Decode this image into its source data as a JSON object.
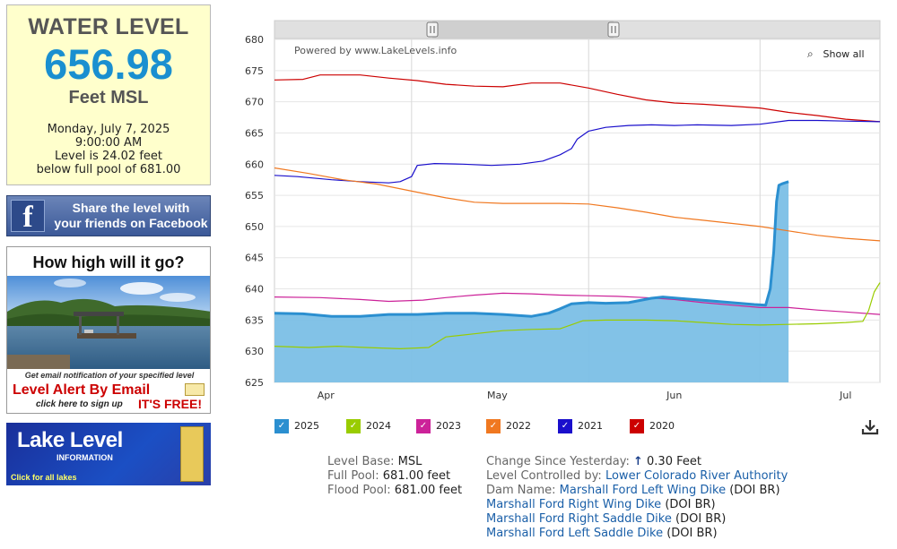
{
  "level_box": {
    "title": "WATER LEVEL",
    "value": "656.98",
    "unit": "Feet MSL",
    "date": "Monday, July 7, 2025",
    "time": "9:00:00 AM",
    "level_line": "Level is 24.02 feet",
    "pool_line": "below full pool of 681.00"
  },
  "facebook": {
    "text_line1": "Share the level with",
    "text_line2": "your friends on Facebook",
    "logo": "f"
  },
  "alert": {
    "heading": "How high will it go?",
    "note": "Get email notification of your specified level",
    "main": "Level Alert By Email",
    "signup": "click here to sign up",
    "free": "IT'S FREE!"
  },
  "lake_banner": {
    "title": "Lake Level",
    "sub": "INFORMATION",
    "link": "Click for all lakes"
  },
  "chart": {
    "powered": "Powered by www.LakeLevels.info",
    "show_all": "Show all",
    "zoom_icon": "magnifier-minus-icon"
  },
  "chart_data": {
    "type": "line",
    "ylim": [
      625,
      680
    ],
    "yticks": [
      "680",
      "675",
      "670",
      "665",
      "660",
      "655",
      "650",
      "645",
      "640",
      "635",
      "630",
      "625"
    ],
    "xlim": [
      0,
      106
    ],
    "xticks": [
      {
        "label": "Apr",
        "day": 9
      },
      {
        "label": "May",
        "day": 39
      },
      {
        "label": "Jun",
        "day": 70
      },
      {
        "label": "Jul",
        "day": 100
      }
    ],
    "gridline_days": [
      24,
      55,
      85
    ],
    "series": [
      {
        "name": "2020",
        "color": "#cc0000",
        "points": [
          [
            0,
            673.5
          ],
          [
            5,
            673.6
          ],
          [
            8,
            674.3
          ],
          [
            15,
            674.3
          ],
          [
            20,
            673.8
          ],
          [
            25,
            673.4
          ],
          [
            30,
            672.8
          ],
          [
            35,
            672.5
          ],
          [
            40,
            672.4
          ],
          [
            45,
            673.0
          ],
          [
            50,
            673.0
          ],
          [
            55,
            672.2
          ],
          [
            60,
            671.2
          ],
          [
            65,
            670.3
          ],
          [
            70,
            669.8
          ],
          [
            75,
            669.6
          ],
          [
            80,
            669.3
          ],
          [
            85,
            669.0
          ],
          [
            90,
            668.3
          ],
          [
            95,
            667.8
          ],
          [
            100,
            667.2
          ],
          [
            106,
            666.8
          ]
        ]
      },
      {
        "name": "2021",
        "color": "#1a0fcc",
        "points": [
          [
            0,
            658.2
          ],
          [
            4,
            658.0
          ],
          [
            10,
            657.5
          ],
          [
            15,
            657.2
          ],
          [
            20,
            657.0
          ],
          [
            22,
            657.2
          ],
          [
            24,
            658.0
          ],
          [
            25,
            659.8
          ],
          [
            28,
            660.1
          ],
          [
            33,
            660.0
          ],
          [
            38,
            659.8
          ],
          [
            43,
            660.0
          ],
          [
            47,
            660.5
          ],
          [
            50,
            661.5
          ],
          [
            52,
            662.5
          ],
          [
            53,
            664.0
          ],
          [
            55,
            665.3
          ],
          [
            58,
            665.9
          ],
          [
            62,
            666.2
          ],
          [
            66,
            666.3
          ],
          [
            70,
            666.2
          ],
          [
            74,
            666.3
          ],
          [
            80,
            666.2
          ],
          [
            85,
            666.4
          ],
          [
            90,
            667.0
          ],
          [
            95,
            667.0
          ],
          [
            100,
            666.9
          ],
          [
            106,
            666.8
          ]
        ]
      },
      {
        "name": "2022",
        "color": "#f07820",
        "points": [
          [
            0,
            659.4
          ],
          [
            6,
            658.5
          ],
          [
            12,
            657.5
          ],
          [
            18,
            656.8
          ],
          [
            25,
            655.5
          ],
          [
            30,
            654.6
          ],
          [
            35,
            653.9
          ],
          [
            40,
            653.7
          ],
          [
            45,
            653.7
          ],
          [
            50,
            653.7
          ],
          [
            55,
            653.6
          ],
          [
            60,
            653.0
          ],
          [
            65,
            652.3
          ],
          [
            70,
            651.5
          ],
          [
            75,
            651.0
          ],
          [
            80,
            650.5
          ],
          [
            85,
            650.0
          ],
          [
            90,
            649.3
          ],
          [
            95,
            648.6
          ],
          [
            100,
            648.1
          ],
          [
            106,
            647.7
          ]
        ]
      },
      {
        "name": "2023",
        "color": "#cc2299",
        "points": [
          [
            0,
            638.7
          ],
          [
            8,
            638.6
          ],
          [
            15,
            638.3
          ],
          [
            20,
            638.0
          ],
          [
            26,
            638.2
          ],
          [
            30,
            638.6
          ],
          [
            35,
            639.0
          ],
          [
            40,
            639.3
          ],
          [
            45,
            639.2
          ],
          [
            50,
            639.0
          ],
          [
            55,
            638.9
          ],
          [
            60,
            638.8
          ],
          [
            65,
            638.6
          ],
          [
            70,
            638.3
          ],
          [
            75,
            637.8
          ],
          [
            80,
            637.4
          ],
          [
            85,
            637.0
          ],
          [
            90,
            637.0
          ],
          [
            95,
            636.6
          ],
          [
            100,
            636.3
          ],
          [
            106,
            635.9
          ]
        ]
      },
      {
        "name": "2024",
        "color": "#99cc00",
        "points": [
          [
            0,
            630.8
          ],
          [
            6,
            630.6
          ],
          [
            11,
            630.8
          ],
          [
            16,
            630.6
          ],
          [
            22,
            630.4
          ],
          [
            27,
            630.6
          ],
          [
            30,
            632.3
          ],
          [
            35,
            632.8
          ],
          [
            40,
            633.3
          ],
          [
            45,
            633.5
          ],
          [
            50,
            633.6
          ],
          [
            54,
            634.9
          ],
          [
            58,
            635.0
          ],
          [
            65,
            635.0
          ],
          [
            70,
            634.9
          ],
          [
            75,
            634.6
          ],
          [
            80,
            634.3
          ],
          [
            85,
            634.2
          ],
          [
            90,
            634.3
          ],
          [
            95,
            634.4
          ],
          [
            100,
            634.6
          ],
          [
            103,
            634.8
          ],
          [
            104,
            636.5
          ],
          [
            105,
            639.5
          ],
          [
            106,
            641.0
          ]
        ]
      },
      {
        "name": "2025",
        "color": "#2b8fd0",
        "fill": "#7bbfe6",
        "points": [
          [
            0,
            636.1
          ],
          [
            5,
            636.0
          ],
          [
            10,
            635.6
          ],
          [
            15,
            635.6
          ],
          [
            20,
            635.9
          ],
          [
            25,
            635.9
          ],
          [
            30,
            636.1
          ],
          [
            35,
            636.1
          ],
          [
            40,
            635.9
          ],
          [
            45,
            635.6
          ],
          [
            48,
            636.1
          ],
          [
            50,
            636.8
          ],
          [
            52,
            637.6
          ],
          [
            55,
            637.8
          ],
          [
            58,
            637.7
          ],
          [
            62,
            637.8
          ],
          [
            66,
            638.5
          ],
          [
            68,
            638.7
          ],
          [
            72,
            638.4
          ],
          [
            76,
            638.1
          ],
          [
            80,
            637.8
          ],
          [
            84,
            637.5
          ],
          [
            86,
            637.4
          ],
          [
            86.8,
            640.0
          ],
          [
            87.4,
            646.0
          ],
          [
            87.9,
            654.0
          ],
          [
            88.3,
            656.6
          ],
          [
            89,
            656.9
          ],
          [
            90,
            657.2
          ]
        ]
      }
    ]
  },
  "legend": [
    {
      "label": "2025",
      "color": "#2b8fd0",
      "mark": "✓"
    },
    {
      "label": "2024",
      "color": "#99cc00",
      "mark": "✓"
    },
    {
      "label": "2023",
      "color": "#cc2299",
      "mark": "✓"
    },
    {
      "label": "2022",
      "color": "#f07820",
      "mark": "✓"
    },
    {
      "label": "2021",
      "color": "#1a0fcc",
      "mark": "✓"
    },
    {
      "label": "2020",
      "color": "#cc0000",
      "mark": "✓"
    }
  ],
  "info": {
    "base_label": "Level Base:",
    "base_value": "MSL",
    "full_label": "Full Pool:",
    "full_value": "681.00 feet",
    "flood_label": "Flood Pool:",
    "flood_value": "681.00 feet",
    "change_label": "Change Since Yesterday:",
    "change_arrow": "↑",
    "change_value": "0.30 Feet",
    "controlled_label": "Level Controlled by:",
    "controlled_value": "Lower Colorado River Authority",
    "dam_label": "Dam Name:",
    "dams": [
      {
        "name": "Marshall Ford Left Wing Dike",
        "agency": "(DOI BR)"
      },
      {
        "name": "Marshall Ford Right Wing Dike",
        "agency": "(DOI BR)"
      },
      {
        "name": "Marshall Ford Right Saddle Dike",
        "agency": "(DOI BR)"
      },
      {
        "name": "Marshall Ford Left Saddle Dike",
        "agency": "(DOI BR)"
      }
    ]
  }
}
